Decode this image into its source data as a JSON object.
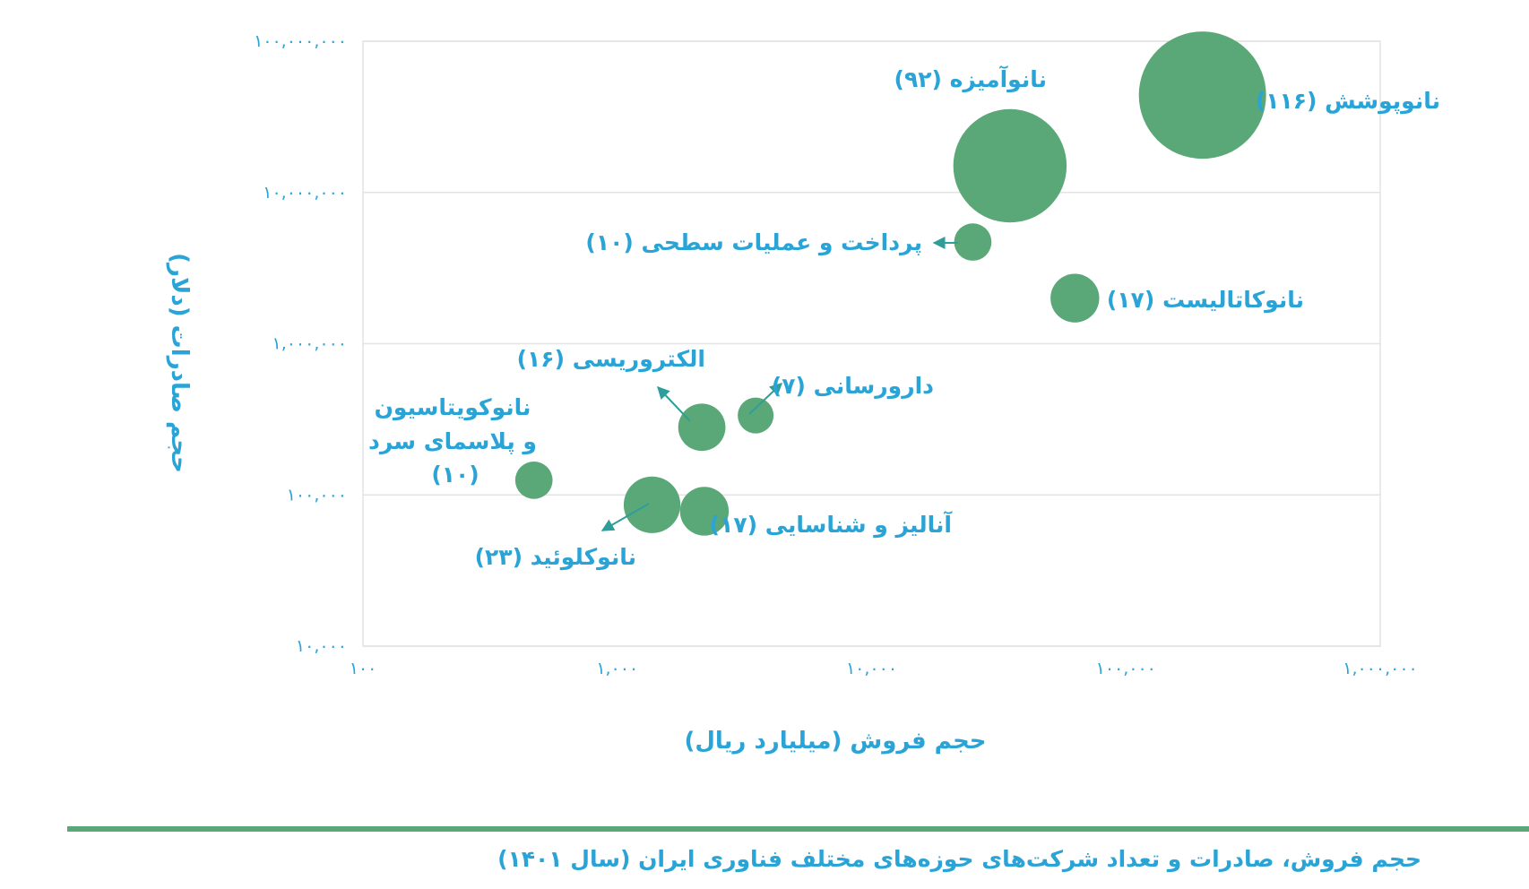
{
  "colors": {
    "bubble": "#5aa878",
    "text": "#2aa4d6",
    "grid": "#e3e3e3",
    "rule": "#5aa878"
  },
  "chart_data": {
    "type": "scatter",
    "subtype": "bubble",
    "x_scale": "log",
    "y_scale": "log",
    "xlabel": "حجم فروش (میلیارد ریال)",
    "ylabel": "حجم صادرات (دلار)",
    "xlim": [
      100,
      1000000
    ],
    "ylim": [
      10000,
      100000000
    ],
    "x_ticks": [
      100,
      1000,
      10000,
      100000,
      1000000
    ],
    "y_ticks": [
      10000,
      100000,
      1000000,
      10000000,
      100000000
    ],
    "x_tick_labels": [
      "۱۰۰",
      "۱,۰۰۰",
      "۱۰,۰۰۰",
      "۱۰۰,۰۰۰",
      "۱,۰۰۰,۰۰۰"
    ],
    "y_tick_labels": [
      "۱۰,۰۰۰",
      "۱۰۰,۰۰۰",
      "۱,۰۰۰,۰۰۰",
      "۱۰,۰۰۰,۰۰۰",
      "۱۰۰,۰۰۰,۰۰۰"
    ],
    "grid": true,
    "points": [
      {
        "label": "نانوپوشش (۱۱۶)",
        "x": 200000,
        "y": 44000000,
        "size": 116
      },
      {
        "label": "نانوآمیزه (۹۲)",
        "x": 35000,
        "y": 15000000,
        "size": 92
      },
      {
        "label": "پرداخت و عملیات سطحی (۱۰)",
        "x": 25000,
        "y": 4700000,
        "size": 10
      },
      {
        "label": "نانوکاتالیست (۱۷)",
        "x": 63000,
        "y": 2000000,
        "size": 17
      },
      {
        "label": "الکتروریسی (۱۶)",
        "x": 2150,
        "y": 280000,
        "size": 16
      },
      {
        "label": "دارورسانی (۷)",
        "x": 3500,
        "y": 335000,
        "size": 7
      },
      {
        "label_lines": [
          "نانوکویتاسیون",
          "و پلاسمای سرد",
          "(۱۰)"
        ],
        "x": 470,
        "y": 125000,
        "size": 10
      },
      {
        "label": "نانوکلوئید (۲۳)",
        "x": 1370,
        "y": 86000,
        "size": 23
      },
      {
        "label": "آنالیز و شناسایی (۱۷)",
        "x": 2200,
        "y": 78000,
        "size": 17
      }
    ]
  },
  "caption": "حجم فروش، صادرات و تعداد شرکت‌های حوزه‌های مختلف فناوری ایران (سال ۱۴۰۱)"
}
